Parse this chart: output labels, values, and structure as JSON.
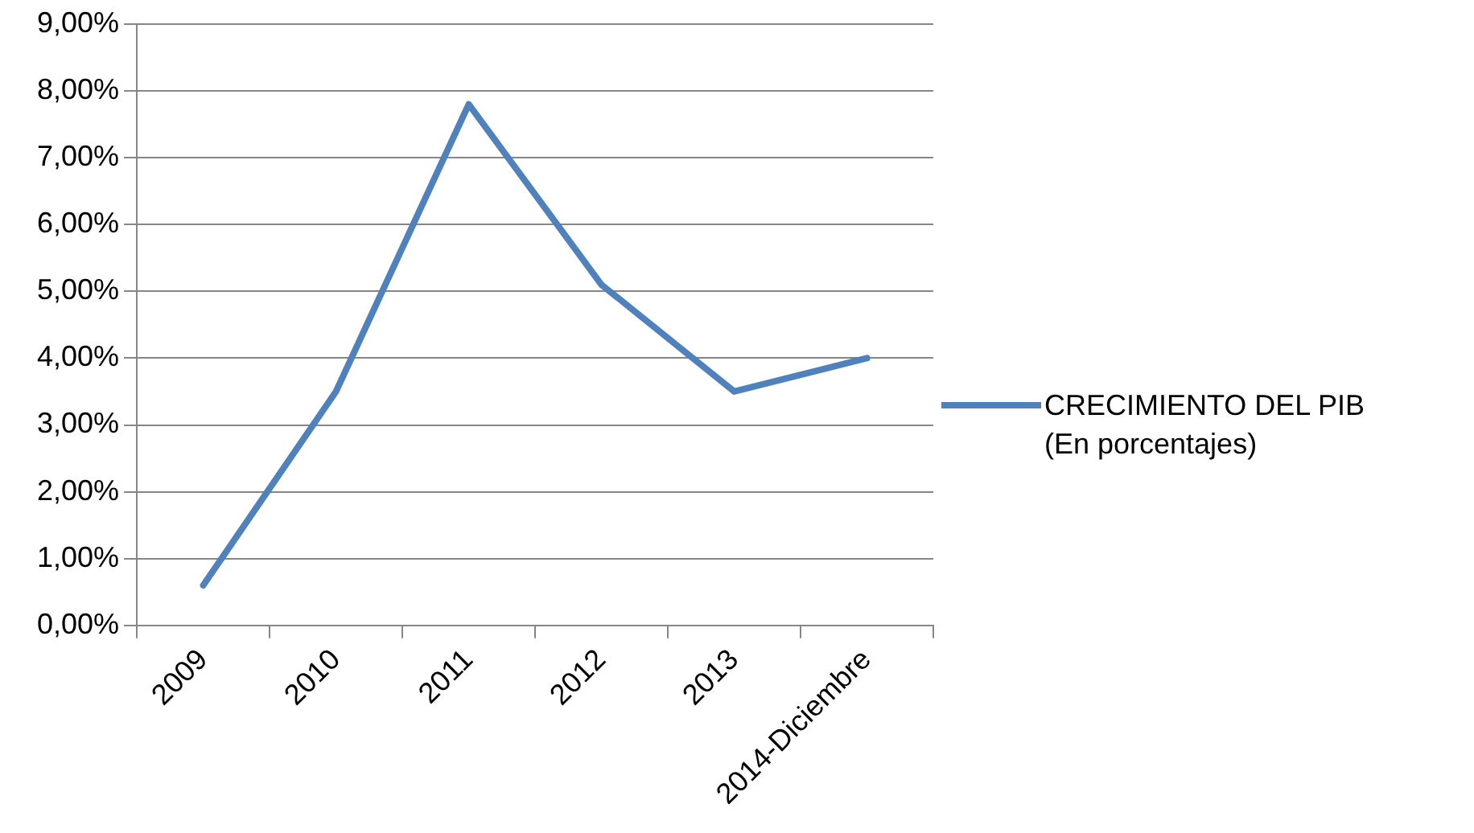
{
  "chart_data": {
    "type": "line",
    "categories": [
      "2009",
      "2010",
      "2011",
      "2012",
      "2013",
      "2014-Diciembre"
    ],
    "series": [
      {
        "name": "CRECIMIENTO DEL PIB (En porcentajes)",
        "color": "#4f81bd",
        "values": [
          0.6,
          3.5,
          7.8,
          5.1,
          3.5,
          4.0
        ]
      }
    ],
    "ylim": [
      0,
      9
    ],
    "yticks": [
      {
        "value": 0,
        "label": "0,00%"
      },
      {
        "value": 1,
        "label": "1,00%"
      },
      {
        "value": 2,
        "label": "2,00%"
      },
      {
        "value": 3,
        "label": "3,00%"
      },
      {
        "value": 4,
        "label": "4,00%"
      },
      {
        "value": 5,
        "label": "5,00%"
      },
      {
        "value": 6,
        "label": "6,00%"
      },
      {
        "value": 7,
        "label": "7,00%"
      },
      {
        "value": 8,
        "label": "8,00%"
      },
      {
        "value": 9,
        "label": "9,00%"
      }
    ],
    "grid": "y",
    "legend": "right",
    "marker": "none",
    "line_style": "solid"
  }
}
